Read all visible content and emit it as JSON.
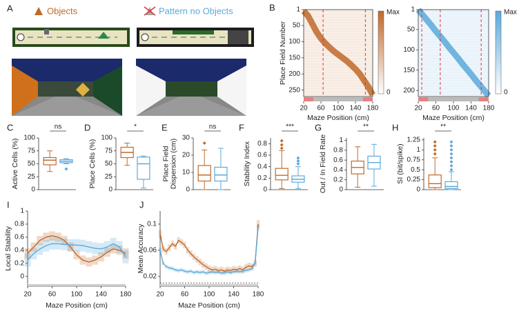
{
  "panel_a": {
    "panel": "A",
    "scenes": [
      {
        "title": "Objects"
      },
      {
        "title": "Pattern no Objects"
      }
    ]
  },
  "chart_data": [
    {
      "type": "heatmap",
      "panel": "B",
      "ylabel": "Place Field Number",
      "xlabel": "Maze Position (cm)",
      "color": "#c0692a",
      "x": [
        20,
        30,
        40,
        50,
        60,
        70,
        80,
        90,
        100,
        110,
        120,
        130,
        140,
        150,
        160,
        170,
        180
      ],
      "values": [
        5,
        20,
        45,
        70,
        90,
        105,
        118,
        130,
        140,
        150,
        160,
        172,
        185,
        200,
        220,
        240,
        265
      ],
      "xlim": [
        20,
        180
      ],
      "xticks": [
        20,
        60,
        100,
        140,
        180
      ],
      "ylim": [
        1,
        270
      ],
      "yticks": [
        1,
        50,
        100,
        150,
        200,
        250
      ],
      "dashed_lines": [
        65,
        163
      ],
      "colorbar": [
        "Max",
        "0"
      ]
    },
    {
      "type": "heatmap",
      "xlabel": "Maze Position (cm)",
      "color": "#5aa9dc",
      "x": [
        20,
        30,
        40,
        50,
        60,
        70,
        80,
        90,
        100,
        110,
        120,
        130,
        140,
        150,
        160,
        170,
        180
      ],
      "values": [
        1,
        14,
        27,
        40,
        54,
        67,
        80,
        94,
        107,
        120,
        134,
        147,
        160,
        174,
        187,
        200,
        213
      ],
      "xlim": [
        20,
        180
      ],
      "xticks": [
        20,
        60,
        100,
        140,
        180
      ],
      "ylim": [
        1,
        215
      ],
      "yticks": [
        1,
        50,
        100,
        150,
        200
      ],
      "dashed_lines": [
        28,
        70,
        163
      ],
      "colorbar": [
        "Max",
        "0"
      ]
    },
    {
      "type": "box",
      "panel": "C",
      "ylabel": [
        "Active Cells (%)"
      ],
      "annotation": "ns",
      "ylim": [
        0,
        100
      ],
      "yticks": [
        0,
        25,
        50,
        75,
        100
      ],
      "series": [
        {
          "color": "#c0692a",
          "stats": [
            35,
            48,
            57,
            62,
            75
          ],
          "outliers": []
        },
        {
          "color": "#5aa9dc",
          "stats": [
            50,
            52,
            55,
            58,
            60
          ],
          "outliers": [
            40
          ]
        }
      ]
    },
    {
      "type": "box",
      "panel": "D",
      "ylabel": [
        "Place Cells (%)"
      ],
      "annotation": "*",
      "ylim": [
        0,
        100
      ],
      "yticks": [
        0,
        25,
        50,
        75,
        100
      ],
      "series": [
        {
          "color": "#c0692a",
          "stats": [
            47,
            62,
            72,
            82,
            90
          ],
          "outliers": []
        },
        {
          "color": "#5aa9dc",
          "stats": [
            3,
            20,
            50,
            63,
            65
          ],
          "outliers": []
        }
      ]
    },
    {
      "type": "box",
      "panel": "E",
      "ylabel": [
        "Place Field",
        "Dispersion (cm)"
      ],
      "annotation": "ns",
      "ylim": [
        0,
        30
      ],
      "yticks": [
        0,
        10,
        20,
        30
      ],
      "series": [
        {
          "color": "#c0692a",
          "stats": [
            0,
            5,
            8.5,
            14,
            23
          ],
          "outliers": [
            27
          ]
        },
        {
          "color": "#5aa9dc",
          "stats": [
            0,
            5,
            8.5,
            13,
            24
          ],
          "outliers": []
        }
      ]
    },
    {
      "type": "box",
      "panel": "F",
      "ylabel": [
        "Stability Index"
      ],
      "annotation": "***",
      "ylim": [
        0,
        0.9
      ],
      "yticks": [
        0,
        0.2,
        0.4,
        0.6,
        0.8
      ],
      "series": [
        {
          "color": "#c0692a",
          "stats": [
            0.02,
            0.17,
            0.25,
            0.37,
            0.68
          ],
          "outliers": [
            0.72,
            0.78,
            0.85
          ]
        },
        {
          "color": "#5aa9dc",
          "stats": [
            0.02,
            0.13,
            0.18,
            0.24,
            0.4
          ],
          "outliers": [
            0.45,
            0.5,
            0.55
          ]
        }
      ]
    },
    {
      "type": "box",
      "panel": "G",
      "ylabel": [
        "Out / In Field Rate"
      ],
      "annotation": "**",
      "ylim": [
        0,
        1.05
      ],
      "yticks": [
        0,
        0.2,
        0.4,
        0.6,
        0.8,
        1
      ],
      "series": [
        {
          "color": "#c0692a",
          "stats": [
            0.05,
            0.32,
            0.45,
            0.58,
            0.87
          ],
          "outliers": []
        },
        {
          "color": "#5aa9dc",
          "stats": [
            0.07,
            0.42,
            0.55,
            0.68,
            0.92
          ],
          "outliers": []
        }
      ]
    },
    {
      "type": "box",
      "panel": "H",
      "ylabel": [
        "SI (bit/spike)"
      ],
      "annotation": "**",
      "ylim": [
        0,
        1.3
      ],
      "yticks": [
        0,
        0.25,
        0.5,
        0.75,
        1,
        1.25
      ],
      "series": [
        {
          "color": "#c0692a",
          "stats": [
            0,
            0.05,
            0.15,
            0.37,
            0.8
          ],
          "outliers": [
            0.9,
            1.0,
            1.1,
            1.2
          ]
        },
        {
          "color": "#5aa9dc",
          "stats": [
            0,
            0.03,
            0.08,
            0.2,
            0.45
          ],
          "outliers": [
            0.5,
            0.6,
            0.7,
            0.8,
            0.9,
            1.0,
            1.1,
            1.2
          ]
        }
      ]
    },
    {
      "type": "line",
      "panel": "I",
      "ylabel": "Local Stability",
      "xlabel": "Maze Position (cm)",
      "x": [
        20,
        30,
        40,
        50,
        60,
        70,
        80,
        90,
        100,
        110,
        120,
        130,
        140,
        150,
        160,
        170,
        180
      ],
      "xlim": [
        20,
        180
      ],
      "xticks": [
        20,
        60,
        100,
        140,
        180
      ],
      "ylim": [
        -0.15,
        1
      ],
      "yticks": [
        0,
        0.2,
        0.4,
        0.6,
        0.8,
        1
      ],
      "series": [
        {
          "color": "#c0692a",
          "values": [
            0.35,
            0.45,
            0.55,
            0.6,
            0.62,
            0.6,
            0.55,
            0.45,
            0.33,
            0.25,
            0.22,
            0.25,
            0.3,
            0.37,
            0.42,
            0.4,
            0.35
          ],
          "errors": [
            0.08,
            0.07,
            0.07,
            0.07,
            0.07,
            0.07,
            0.07,
            0.07,
            0.07,
            0.07,
            0.07,
            0.07,
            0.07,
            0.07,
            0.07,
            0.07,
            0.08
          ]
        },
        {
          "color": "#5aa9dc",
          "values": [
            0.25,
            0.35,
            0.42,
            0.47,
            0.5,
            0.5,
            0.49,
            0.48,
            0.48,
            0.47,
            0.45,
            0.43,
            0.42,
            0.45,
            0.5,
            0.45,
            0.3
          ],
          "errors": [
            0.1,
            0.09,
            0.09,
            0.09,
            0.09,
            0.09,
            0.09,
            0.09,
            0.09,
            0.09,
            0.09,
            0.09,
            0.09,
            0.09,
            0.09,
            0.09,
            0.1
          ]
        }
      ]
    },
    {
      "type": "line",
      "panel": "J",
      "ylabel": "Mean Accuracy",
      "xlabel": "Maze Position (cm)",
      "x": [
        20,
        25,
        30,
        35,
        40,
        45,
        50,
        55,
        60,
        65,
        70,
        75,
        80,
        85,
        90,
        95,
        100,
        105,
        110,
        115,
        120,
        125,
        130,
        135,
        140,
        145,
        150,
        155,
        160,
        165,
        170,
        175,
        180
      ],
      "xlim": [
        20,
        180
      ],
      "xticks": [
        20,
        60,
        100,
        140,
        180
      ],
      "ylim": [
        0.005,
        0.12
      ],
      "yticks": [
        0.02,
        0.06,
        0.1
      ],
      "hline": 0.01,
      "series": [
        {
          "color": "#c0692a",
          "values": [
            0.085,
            0.062,
            0.058,
            0.064,
            0.07,
            0.066,
            0.075,
            0.072,
            0.068,
            0.06,
            0.055,
            0.05,
            0.046,
            0.042,
            0.038,
            0.035,
            0.032,
            0.03,
            0.031,
            0.029,
            0.03,
            0.028,
            0.03,
            0.029,
            0.031,
            0.03,
            0.032,
            0.03,
            0.034,
            0.036,
            0.035,
            0.04,
            0.1
          ],
          "errors": [
            0.006,
            0.005,
            0.005,
            0.005,
            0.005,
            0.005,
            0.005,
            0.005,
            0.005,
            0.005,
            0.005,
            0.005,
            0.005,
            0.005,
            0.005,
            0.005,
            0.005,
            0.005,
            0.005,
            0.005,
            0.005,
            0.005,
            0.005,
            0.005,
            0.005,
            0.005,
            0.005,
            0.005,
            0.005,
            0.005,
            0.005,
            0.005,
            0.006
          ]
        },
        {
          "color": "#5aa9dc",
          "values": [
            0.06,
            0.04,
            0.035,
            0.033,
            0.032,
            0.03,
            0.029,
            0.03,
            0.028,
            0.027,
            0.028,
            0.026,
            0.027,
            0.026,
            0.027,
            0.025,
            0.026,
            0.027,
            0.026,
            0.027,
            0.025,
            0.026,
            0.027,
            0.026,
            0.027,
            0.028,
            0.027,
            0.028,
            0.029,
            0.03,
            0.032,
            0.04,
            0.095
          ],
          "errors": [
            0.004,
            0.003,
            0.003,
            0.003,
            0.003,
            0.003,
            0.003,
            0.003,
            0.003,
            0.003,
            0.003,
            0.003,
            0.003,
            0.003,
            0.003,
            0.003,
            0.003,
            0.003,
            0.003,
            0.003,
            0.003,
            0.003,
            0.003,
            0.003,
            0.003,
            0.003,
            0.003,
            0.003,
            0.003,
            0.003,
            0.003,
            0.003,
            0.004
          ]
        }
      ]
    }
  ]
}
